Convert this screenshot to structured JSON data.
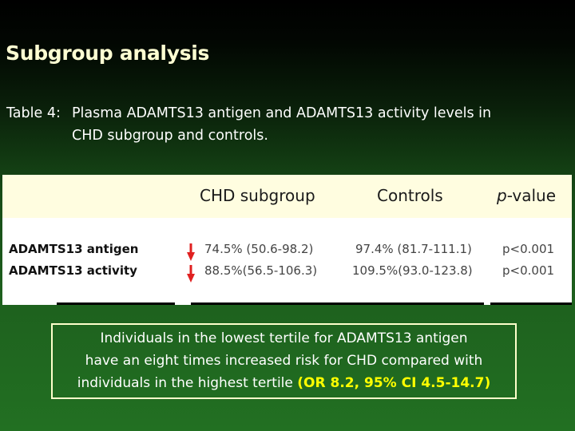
{
  "slide": {
    "title": "Subgroup analysis",
    "subtitle_prefix": "Table 4:",
    "subtitle_line1": "Plasma ADAMTS13 antigen and ADAMTS13 activity levels in",
    "subtitle_line2": "CHD subgroup and controls."
  },
  "table": {
    "headers": {
      "chd": "CHD subgroup",
      "controls": "Controls",
      "pvalue_italic": "p",
      "pvalue_rest": "-value"
    },
    "rows": [
      {
        "label": "ADAMTS13 antigen",
        "chd": "74.5% (50.6-98.2)",
        "controls": "97.4% (81.7-111.1)",
        "pvalue": "p<0.001",
        "trend": "decrease"
      },
      {
        "label": "ADAMTS13 activity",
        "chd": "88.5%(56.5-106.3)",
        "controls": "109.5%(93.0-123.8)",
        "pvalue": "p<0.001",
        "trend": "decrease"
      }
    ],
    "arrow_color": "#e02020"
  },
  "callout": {
    "line1": "Individuals in the lowest tertile for ADAMTS13 antigen",
    "line2": "have an eight times increased risk for CHD compared with",
    "line3_text": "individuals in the highest tertile",
    "line3_highlight": "(OR 8.2, 95% CI 4.5-14.7)",
    "highlight_color": "#ffff00"
  }
}
